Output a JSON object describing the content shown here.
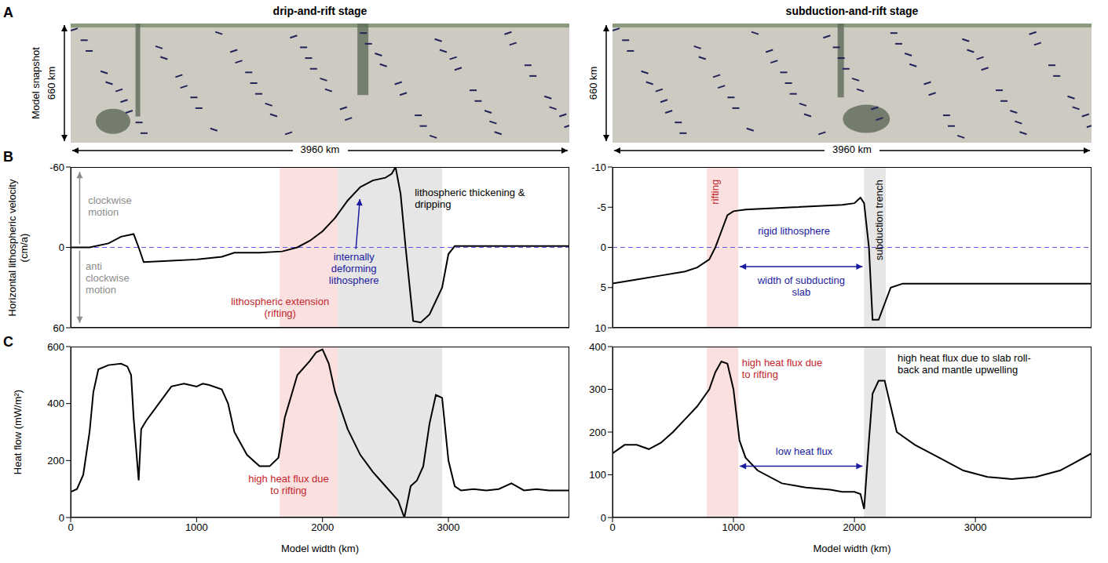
{
  "figure": {
    "panel_labels": [
      "A",
      "B",
      "C"
    ],
    "column_titles": [
      "drip-and-rift stage",
      "subduction-and-rift stage"
    ],
    "snapshot_label": "Model snapshot",
    "depth_label": "660 km",
    "width_label": "3960 km"
  },
  "chart_data": [
    {
      "type": "line",
      "y_label": "Horizontal lithospheric velocity (cm/a)",
      "x": [
        0,
        150,
        300,
        400,
        500,
        540,
        580,
        800,
        1000,
        1200,
        1300,
        1500,
        1680,
        1800,
        1900,
        2000,
        2100,
        2200,
        2300,
        2400,
        2500,
        2550,
        2580,
        2620,
        2660,
        2720,
        2780,
        2850,
        2950,
        3000,
        3050,
        3960
      ],
      "values": [
        0,
        0,
        -3,
        -8,
        -10,
        0,
        11,
        10,
        9,
        7,
        4,
        4,
        3,
        0,
        -5,
        -12,
        -22,
        -35,
        -45,
        -50,
        -52,
        -55,
        -60,
        -40,
        0,
        55,
        56,
        50,
        30,
        5,
        -1,
        -1
      ],
      "color": "#000000",
      "xlim": [
        0,
        3960
      ],
      "xticks": [
        0,
        1000,
        2000,
        3000
      ],
      "ylim": [
        60,
        -60
      ],
      "yticks": [
        -60,
        0,
        60
      ],
      "tick_labels": "y",
      "shaded_ranges": [
        {
          "x": [
            1660,
            2120
          ],
          "color": "#fbe0e0"
        },
        {
          "x": [
            2120,
            2950
          ],
          "color": "#e6e6e6"
        }
      ],
      "reference_lines": [
        {
          "y": 0,
          "color": "#5a5ae6",
          "line_style": "dashed"
        }
      ],
      "annotations": [
        {
          "text": "clockwise motion",
          "color": "#8c8c8c"
        },
        {
          "text": "anti clockwise motion",
          "color": "#8c8c8c"
        },
        {
          "text": "internally deforming lithosphere",
          "color": "#1b1b9e"
        },
        {
          "text": "lithospheric extension (rifting)",
          "color": "#c1272d"
        },
        {
          "text": "lithospheric thickening & dripping",
          "color": "#000000"
        }
      ]
    },
    {
      "type": "line",
      "y_label": "Heat flow (mW/m²)",
      "x_label": "Model width (km)",
      "x": [
        0,
        50,
        100,
        150,
        180,
        220,
        300,
        400,
        450,
        480,
        500,
        520,
        540,
        560,
        600,
        700,
        800,
        900,
        1000,
        1050,
        1100,
        1200,
        1250,
        1300,
        1400,
        1500,
        1580,
        1650,
        1700,
        1800,
        1900,
        1950,
        2000,
        2050,
        2100,
        2200,
        2300,
        2400,
        2500,
        2600,
        2650,
        2700,
        2750,
        2800,
        2850,
        2900,
        2950,
        3000,
        3050,
        3100,
        3200,
        3300,
        3400,
        3500,
        3600,
        3700,
        3800,
        3960
      ],
      "values": [
        90,
        100,
        150,
        300,
        440,
        520,
        535,
        540,
        530,
        500,
        350,
        240,
        130,
        310,
        340,
        400,
        460,
        470,
        460,
        470,
        465,
        450,
        400,
        300,
        220,
        180,
        180,
        210,
        350,
        500,
        550,
        580,
        590,
        540,
        440,
        310,
        220,
        160,
        110,
        60,
        0,
        110,
        130,
        180,
        330,
        430,
        420,
        200,
        110,
        95,
        100,
        95,
        100,
        120,
        95,
        100,
        95,
        95
      ],
      "color": "#000000",
      "xlim": [
        0,
        3960
      ],
      "xticks": [
        0,
        1000,
        2000,
        3000
      ],
      "ylim": [
        0,
        600
      ],
      "yticks": [
        0,
        200,
        400,
        600
      ],
      "shaded_ranges": [
        {
          "x": [
            1660,
            2120
          ],
          "color": "#fbe0e0"
        },
        {
          "x": [
            2120,
            2950
          ],
          "color": "#e6e6e6"
        }
      ],
      "annotations": [
        {
          "text": "high heat flux due to rifting",
          "color": "#c1272d"
        }
      ]
    },
    {
      "type": "line",
      "x": [
        0,
        200,
        400,
        600,
        700,
        800,
        850,
        900,
        950,
        1000,
        1100,
        1500,
        1900,
        2000,
        2050,
        2080,
        2120,
        2150,
        2200,
        2250,
        2300,
        2400,
        3960
      ],
      "values": [
        4.5,
        4,
        3.5,
        3,
        2.5,
        1.5,
        0,
        -2,
        -4,
        -4.5,
        -4.7,
        -5,
        -5.3,
        -5.5,
        -6.2,
        -5.5,
        0,
        9,
        9,
        7,
        5,
        4.5,
        4.5
      ],
      "color": "#000000",
      "xlim": [
        0,
        3960
      ],
      "xticks": [
        0,
        1000,
        2000,
        3000
      ],
      "ylim": [
        10,
        -10
      ],
      "yticks": [
        -10,
        -5,
        0,
        5,
        10
      ],
      "tick_labels": "y",
      "shaded_ranges": [
        {
          "x": [
            780,
            1040
          ],
          "color": "#fbe0e0"
        },
        {
          "x": [
            2080,
            2260
          ],
          "color": "#e6e6e6"
        }
      ],
      "reference_lines": [
        {
          "y": 0,
          "color": "#5a5ae6",
          "line_style": "dashed"
        }
      ],
      "annotations": [
        {
          "text": "rifting",
          "color": "#c1272d"
        },
        {
          "text": "rigid lithosphere",
          "color": "#1b1b9e"
        },
        {
          "text": "width of subducting slab",
          "color": "#1b1b9e"
        },
        {
          "text": "subduction trench",
          "color": "#000000"
        }
      ]
    },
    {
      "type": "line",
      "x_label": "Model width (km)",
      "x": [
        0,
        100,
        200,
        300,
        400,
        500,
        600,
        700,
        800,
        850,
        900,
        950,
        1000,
        1050,
        1100,
        1200,
        1400,
        1600,
        1800,
        1900,
        2000,
        2050,
        2080,
        2120,
        2150,
        2200,
        2250,
        2300,
        2350,
        2500,
        2700,
        2900,
        3100,
        3300,
        3500,
        3700,
        3800,
        3960
      ],
      "values": [
        150,
        170,
        170,
        160,
        175,
        200,
        230,
        260,
        300,
        340,
        365,
        360,
        300,
        180,
        140,
        110,
        80,
        70,
        65,
        60,
        60,
        55,
        20,
        180,
        290,
        320,
        320,
        260,
        200,
        170,
        140,
        110,
        95,
        90,
        95,
        110,
        125,
        150
      ],
      "color": "#000000",
      "xlim": [
        0,
        3960
      ],
      "xticks": [
        0,
        1000,
        2000,
        3000
      ],
      "ylim": [
        0,
        400
      ],
      "yticks": [
        0,
        100,
        200,
        300,
        400
      ],
      "shaded_ranges": [
        {
          "x": [
            780,
            1040
          ],
          "color": "#fbe0e0"
        },
        {
          "x": [
            2080,
            2260
          ],
          "color": "#e6e6e6"
        }
      ],
      "annotations": [
        {
          "text": "high heat flux due to rifting",
          "color": "#c1272d"
        },
        {
          "text": "low heat flux",
          "color": "#1b1b9e"
        },
        {
          "text": "high heat flux due to slab roll-back and mantle upwelling",
          "color": "#000000"
        }
      ]
    }
  ]
}
